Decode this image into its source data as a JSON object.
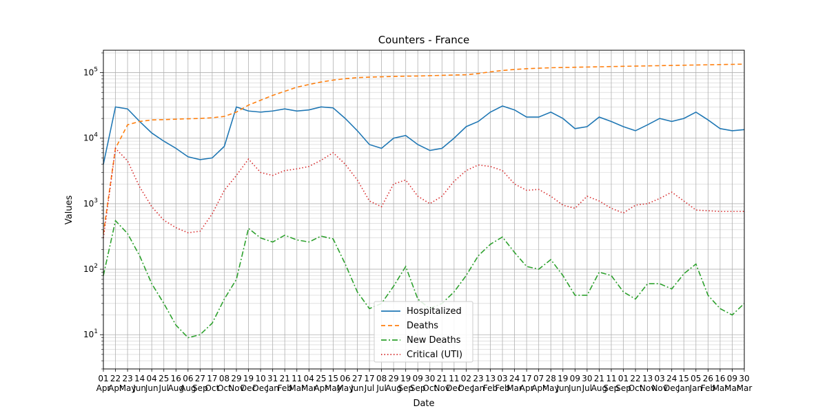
{
  "chart_data": {
    "type": "line",
    "title": "Counters - France",
    "xlabel": "Date",
    "ylabel": "Values",
    "y_scale": "log",
    "ylim": [
      3,
      220000
    ],
    "grid": true,
    "legend_position": "lower center",
    "x_ticks": [
      "01\nApr",
      "22\nApr",
      "23\nMay",
      "14\nJun",
      "04\nJun",
      "25\nJul",
      "16\nAug",
      "06\nAug",
      "27\nSep",
      "17\nOct",
      "08\nOct",
      "29\nNov",
      "19\nDec",
      "10\nDec",
      "31\nJan",
      "21\nFeb",
      "11\nMar",
      "04\nMar",
      "25\nApr",
      "15\nMay",
      "06\nMay",
      "27\nJun",
      "17\nJul",
      "08\nJul",
      "29\nAug",
      "19\nSep",
      "09\nSep",
      "30\nOct",
      "21\nNov",
      "11\nDec",
      "02\nDec",
      "23\nJan",
      "13\nFeb",
      "03\nFeb",
      "24\nMar",
      "17\nApr",
      "07\nApr",
      "28\nMay",
      "19\nJun",
      "09\nJun",
      "30\nJul",
      "21\nAug",
      "11\nSep",
      "01\nSep",
      "22\nOct",
      "13\nNov",
      "03\nNov",
      "24\nDec",
      "15\nJan",
      "05\nJan",
      "26\nFeb",
      "16\nMar",
      "09\nMar",
      "30\nMar"
    ],
    "x": [
      0,
      1,
      2,
      3,
      4,
      5,
      6,
      7,
      8,
      9,
      10,
      11,
      12,
      13,
      14,
      15,
      16,
      17,
      18,
      19,
      20,
      21,
      22,
      23,
      24,
      25,
      26,
      27,
      28,
      29,
      30,
      31,
      32,
      33,
      34,
      35,
      36,
      37,
      38,
      39,
      40,
      41,
      42,
      43,
      44,
      45,
      46,
      47,
      48,
      49,
      50,
      51,
      52,
      53
    ],
    "series": [
      {
        "name": "Hospitalized",
        "color": "#1f77b4",
        "style": "solid",
        "values": [
          4000,
          30000,
          28000,
          18000,
          12000,
          9000,
          7000,
          5200,
          4700,
          5000,
          7500,
          30000,
          26000,
          25000,
          26000,
          28000,
          26000,
          27000,
          30000,
          29000,
          20000,
          13000,
          8000,
          7000,
          10000,
          11000,
          8000,
          6500,
          7000,
          10000,
          15000,
          18000,
          25000,
          31000,
          27000,
          21000,
          21000,
          25000,
          20000,
          14000,
          15000,
          21000,
          18000,
          15000,
          13000,
          16000,
          20000,
          18000,
          20000,
          25000,
          19000,
          14000,
          13000,
          13500
        ]
      },
      {
        "name": "Deaths",
        "color": "#ff7f0e",
        "style": "dashed",
        "values": [
          350,
          7000,
          16000,
          18000,
          19000,
          19200,
          19500,
          19800,
          20000,
          20500,
          21500,
          25000,
          32000,
          38000,
          45000,
          52000,
          60000,
          66000,
          72000,
          77000,
          81000,
          84000,
          85500,
          86500,
          87500,
          88500,
          89000,
          90000,
          91000,
          92000,
          93000,
          97000,
          103000,
          108000,
          112000,
          115000,
          117000,
          119000,
          120000,
          121000,
          122000,
          123000,
          124000,
          125000,
          126000,
          127000,
          128000,
          129000,
          130000,
          131000,
          132000,
          133000,
          134000,
          135000
        ]
      },
      {
        "name": "New Deaths",
        "color": "#2ca02c",
        "style": "dashdot",
        "values": [
          80,
          550,
          350,
          160,
          60,
          30,
          14,
          9,
          10,
          15,
          35,
          70,
          420,
          300,
          260,
          330,
          280,
          260,
          320,
          290,
          120,
          45,
          25,
          30,
          55,
          110,
          35,
          25,
          30,
          45,
          80,
          160,
          240,
          310,
          180,
          110,
          100,
          140,
          80,
          40,
          40,
          90,
          80,
          45,
          35,
          60,
          60,
          50,
          85,
          120,
          40,
          25,
          20,
          30
        ]
      },
      {
        "name": "Critical (UTI)",
        "color": "#d62728",
        "style": "dotted",
        "values": [
          300,
          7000,
          4500,
          1800,
          900,
          560,
          430,
          360,
          380,
          700,
          1600,
          2700,
          4800,
          3000,
          2700,
          3200,
          3400,
          3700,
          4600,
          6000,
          4000,
          2300,
          1100,
          900,
          2000,
          2300,
          1300,
          1000,
          1300,
          2200,
          3200,
          3900,
          3700,
          3200,
          2000,
          1600,
          1650,
          1300,
          950,
          850,
          1300,
          1100,
          850,
          720,
          950,
          1000,
          1200,
          1500,
          1100,
          800,
          780,
          760,
          760,
          760
        ]
      }
    ]
  }
}
